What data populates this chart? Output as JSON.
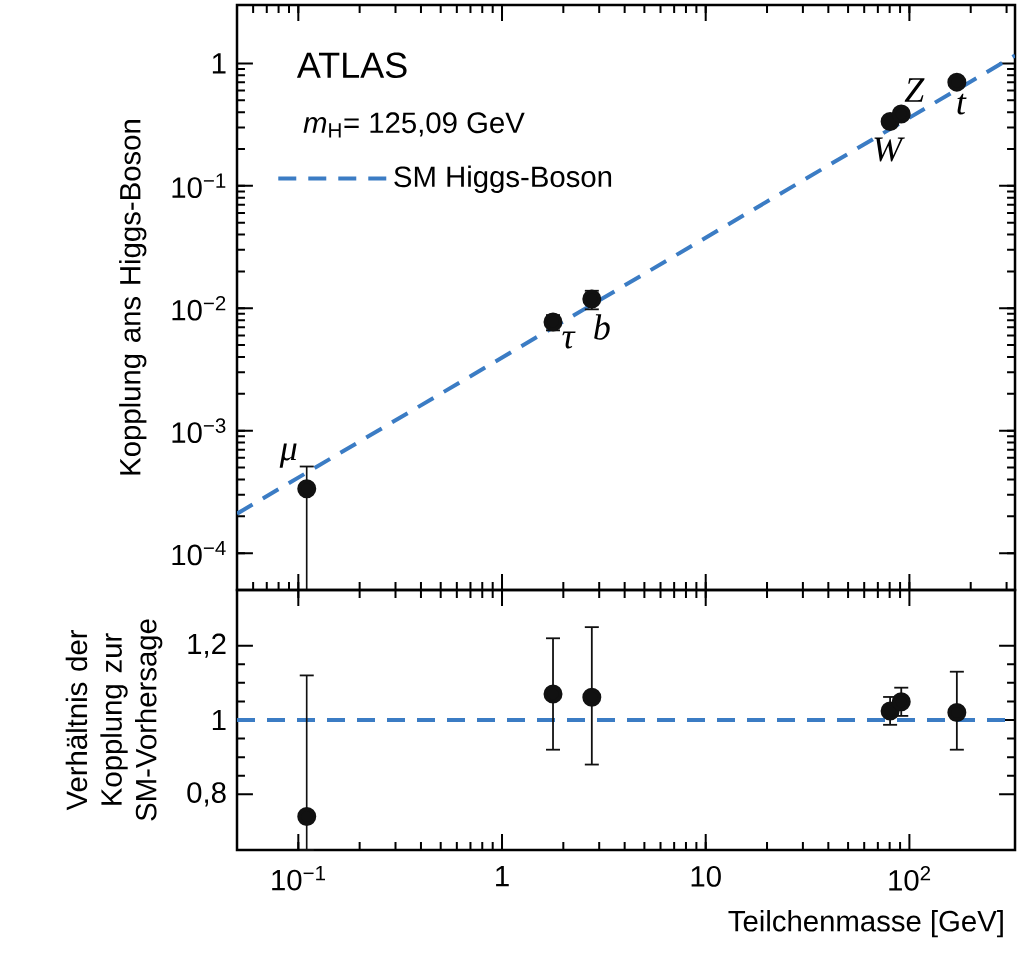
{
  "chart_data": [
    {
      "type": "scatter",
      "ylabel": "Kopplung ans Higgs-Boson",
      "log": "xy",
      "xlim": [
        0.05,
        330
      ],
      "ylim": [
        5e-05,
        3
      ],
      "yticks": [
        {
          "value": 0.0001,
          "label": "10$^{−4}$"
        },
        {
          "value": 0.001,
          "label": "10$^{−3}$"
        },
        {
          "value": 0.01,
          "label": "10$^{−2}$"
        },
        {
          "value": 0.1,
          "label": "10$^{−1}$"
        },
        1
      ],
      "tick_labels": "y",
      "legend": "top left",
      "annotations": [
        "ATLAS",
        "*m*$_{H}$= 125,09 GeV",
        {
          "text": "μ",
          "x": 0.11,
          "y": 0.000336
        },
        {
          "text": "τ",
          "x": 1.78,
          "y": 0.00772
        },
        {
          "text": "b",
          "x": 2.76,
          "y": 0.0119
        },
        {
          "text": "W",
          "x": 80.4,
          "y": 0.335
        },
        {
          "text": "Z",
          "x": 91.2,
          "y": 0.386
        },
        {
          "text": "t",
          "x": 171,
          "y": 0.703
        }
      ],
      "series": [
        {
          "color": "#111111",
          "marker": "circle",
          "x": [
            0.11,
            1.78,
            2.76,
            80.4,
            91.2,
            171
          ],
          "values": [
            0.000336,
            0.00772,
            0.0119,
            0.335,
            0.386,
            0.703
          ],
          "errors": [
            [
              5e-05,
              0.00051
            ],
            [
              0.0066,
              0.0088
            ],
            [
              0.0098,
              0.0139
            ],
            null,
            null,
            null
          ]
        },
        {
          "type": "line",
          "name": "SM Higgs-Boson",
          "color": "#3b7cc4",
          "line_style": "dashed",
          "marker": "none",
          "x": [
            0.05,
            330
          ],
          "values": [
            0.00021,
            1.16
          ]
        }
      ]
    },
    {
      "type": "scatter",
      "xlabel": "Teilchenmasse [GeV]",
      "ylabel": "Verhältnis der Kopplung zur SM-Vorhersage",
      "log": "x",
      "xlim": [
        0.05,
        330
      ],
      "ylim": [
        0.65,
        1.35
      ],
      "xticks": [
        {
          "value": 0.1,
          "label": "10$^{−1}$"
        },
        1,
        10,
        {
          "value": 100,
          "label": "10$^{2}$"
        }
      ],
      "yticks": [
        {
          "value": 0.8,
          "label": "0,8"
        },
        1,
        {
          "value": 1.2,
          "label": "1,2"
        }
      ],
      "ref_lines": [
        {
          "axis": "y",
          "value": 1,
          "color": "#3b7cc4",
          "line_style": "dashed"
        }
      ],
      "series": [
        {
          "color": "#111111",
          "marker": "circle",
          "x": [
            0.11,
            1.78,
            2.76,
            80.4,
            91.2,
            171
          ],
          "values": [
            0.74,
            1.07,
            1.061,
            1.024,
            1.049,
            1.02
          ],
          "errors": [
            [
              0.65,
              1.12
            ],
            [
              0.92,
              1.22
            ],
            [
              0.88,
              1.25
            ],
            [
              0.987,
              1.062
            ],
            [
              1.011,
              1.087
            ],
            [
              0.92,
              1.13
            ]
          ]
        }
      ]
    }
  ]
}
